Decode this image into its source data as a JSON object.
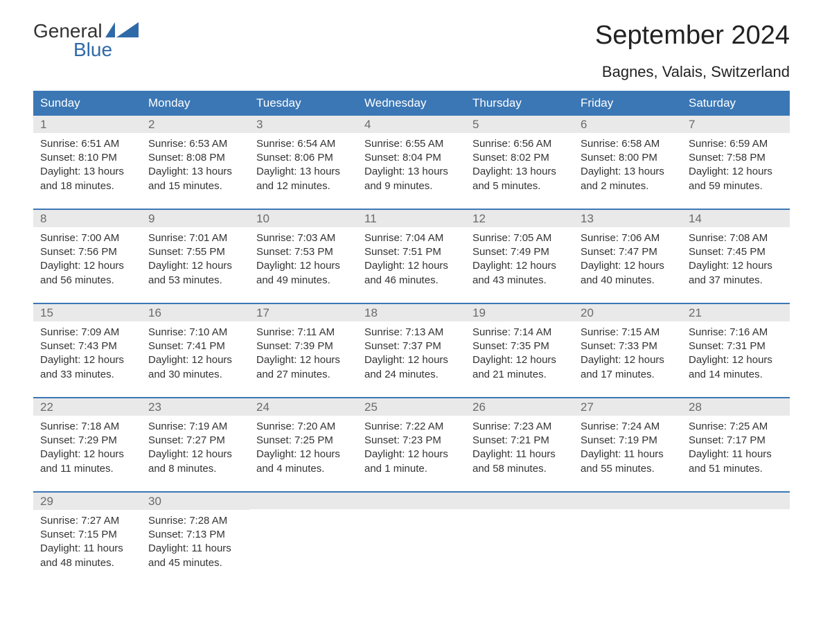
{
  "logo": {
    "word1": "General",
    "word2": "Blue"
  },
  "title": "September 2024",
  "location": "Bagnes, Valais, Switzerland",
  "colors": {
    "header_bg": "#3b77b5",
    "header_text": "#ffffff",
    "daynum_bg": "#e9e9e9",
    "daynum_text": "#6a6a6a",
    "body_text": "#333333",
    "accent": "#2f6aa8",
    "page_bg": "#ffffff",
    "week_border": "#3b77b5"
  },
  "typography": {
    "title_fontsize": 38,
    "subtitle_fontsize": 22,
    "weekday_fontsize": 17,
    "daynum_fontsize": 17,
    "body_fontsize": 15,
    "logo_fontsize": 28
  },
  "weekdays": [
    "Sunday",
    "Monday",
    "Tuesday",
    "Wednesday",
    "Thursday",
    "Friday",
    "Saturday"
  ],
  "weeks": [
    [
      {
        "n": "1",
        "sunrise": "Sunrise: 6:51 AM",
        "sunset": "Sunset: 8:10 PM",
        "day1": "Daylight: 13 hours",
        "day2": "and 18 minutes."
      },
      {
        "n": "2",
        "sunrise": "Sunrise: 6:53 AM",
        "sunset": "Sunset: 8:08 PM",
        "day1": "Daylight: 13 hours",
        "day2": "and 15 minutes."
      },
      {
        "n": "3",
        "sunrise": "Sunrise: 6:54 AM",
        "sunset": "Sunset: 8:06 PM",
        "day1": "Daylight: 13 hours",
        "day2": "and 12 minutes."
      },
      {
        "n": "4",
        "sunrise": "Sunrise: 6:55 AM",
        "sunset": "Sunset: 8:04 PM",
        "day1": "Daylight: 13 hours",
        "day2": "and 9 minutes."
      },
      {
        "n": "5",
        "sunrise": "Sunrise: 6:56 AM",
        "sunset": "Sunset: 8:02 PM",
        "day1": "Daylight: 13 hours",
        "day2": "and 5 minutes."
      },
      {
        "n": "6",
        "sunrise": "Sunrise: 6:58 AM",
        "sunset": "Sunset: 8:00 PM",
        "day1": "Daylight: 13 hours",
        "day2": "and 2 minutes."
      },
      {
        "n": "7",
        "sunrise": "Sunrise: 6:59 AM",
        "sunset": "Sunset: 7:58 PM",
        "day1": "Daylight: 12 hours",
        "day2": "and 59 minutes."
      }
    ],
    [
      {
        "n": "8",
        "sunrise": "Sunrise: 7:00 AM",
        "sunset": "Sunset: 7:56 PM",
        "day1": "Daylight: 12 hours",
        "day2": "and 56 minutes."
      },
      {
        "n": "9",
        "sunrise": "Sunrise: 7:01 AM",
        "sunset": "Sunset: 7:55 PM",
        "day1": "Daylight: 12 hours",
        "day2": "and 53 minutes."
      },
      {
        "n": "10",
        "sunrise": "Sunrise: 7:03 AM",
        "sunset": "Sunset: 7:53 PM",
        "day1": "Daylight: 12 hours",
        "day2": "and 49 minutes."
      },
      {
        "n": "11",
        "sunrise": "Sunrise: 7:04 AM",
        "sunset": "Sunset: 7:51 PM",
        "day1": "Daylight: 12 hours",
        "day2": "and 46 minutes."
      },
      {
        "n": "12",
        "sunrise": "Sunrise: 7:05 AM",
        "sunset": "Sunset: 7:49 PM",
        "day1": "Daylight: 12 hours",
        "day2": "and 43 minutes."
      },
      {
        "n": "13",
        "sunrise": "Sunrise: 7:06 AM",
        "sunset": "Sunset: 7:47 PM",
        "day1": "Daylight: 12 hours",
        "day2": "and 40 minutes."
      },
      {
        "n": "14",
        "sunrise": "Sunrise: 7:08 AM",
        "sunset": "Sunset: 7:45 PM",
        "day1": "Daylight: 12 hours",
        "day2": "and 37 minutes."
      }
    ],
    [
      {
        "n": "15",
        "sunrise": "Sunrise: 7:09 AM",
        "sunset": "Sunset: 7:43 PM",
        "day1": "Daylight: 12 hours",
        "day2": "and 33 minutes."
      },
      {
        "n": "16",
        "sunrise": "Sunrise: 7:10 AM",
        "sunset": "Sunset: 7:41 PM",
        "day1": "Daylight: 12 hours",
        "day2": "and 30 minutes."
      },
      {
        "n": "17",
        "sunrise": "Sunrise: 7:11 AM",
        "sunset": "Sunset: 7:39 PM",
        "day1": "Daylight: 12 hours",
        "day2": "and 27 minutes."
      },
      {
        "n": "18",
        "sunrise": "Sunrise: 7:13 AM",
        "sunset": "Sunset: 7:37 PM",
        "day1": "Daylight: 12 hours",
        "day2": "and 24 minutes."
      },
      {
        "n": "19",
        "sunrise": "Sunrise: 7:14 AM",
        "sunset": "Sunset: 7:35 PM",
        "day1": "Daylight: 12 hours",
        "day2": "and 21 minutes."
      },
      {
        "n": "20",
        "sunrise": "Sunrise: 7:15 AM",
        "sunset": "Sunset: 7:33 PM",
        "day1": "Daylight: 12 hours",
        "day2": "and 17 minutes."
      },
      {
        "n": "21",
        "sunrise": "Sunrise: 7:16 AM",
        "sunset": "Sunset: 7:31 PM",
        "day1": "Daylight: 12 hours",
        "day2": "and 14 minutes."
      }
    ],
    [
      {
        "n": "22",
        "sunrise": "Sunrise: 7:18 AM",
        "sunset": "Sunset: 7:29 PM",
        "day1": "Daylight: 12 hours",
        "day2": "and 11 minutes."
      },
      {
        "n": "23",
        "sunrise": "Sunrise: 7:19 AM",
        "sunset": "Sunset: 7:27 PM",
        "day1": "Daylight: 12 hours",
        "day2": "and 8 minutes."
      },
      {
        "n": "24",
        "sunrise": "Sunrise: 7:20 AM",
        "sunset": "Sunset: 7:25 PM",
        "day1": "Daylight: 12 hours",
        "day2": "and 4 minutes."
      },
      {
        "n": "25",
        "sunrise": "Sunrise: 7:22 AM",
        "sunset": "Sunset: 7:23 PM",
        "day1": "Daylight: 12 hours",
        "day2": "and 1 minute."
      },
      {
        "n": "26",
        "sunrise": "Sunrise: 7:23 AM",
        "sunset": "Sunset: 7:21 PM",
        "day1": "Daylight: 11 hours",
        "day2": "and 58 minutes."
      },
      {
        "n": "27",
        "sunrise": "Sunrise: 7:24 AM",
        "sunset": "Sunset: 7:19 PM",
        "day1": "Daylight: 11 hours",
        "day2": "and 55 minutes."
      },
      {
        "n": "28",
        "sunrise": "Sunrise: 7:25 AM",
        "sunset": "Sunset: 7:17 PM",
        "day1": "Daylight: 11 hours",
        "day2": "and 51 minutes."
      }
    ],
    [
      {
        "n": "29",
        "sunrise": "Sunrise: 7:27 AM",
        "sunset": "Sunset: 7:15 PM",
        "day1": "Daylight: 11 hours",
        "day2": "and 48 minutes."
      },
      {
        "n": "30",
        "sunrise": "Sunrise: 7:28 AM",
        "sunset": "Sunset: 7:13 PM",
        "day1": "Daylight: 11 hours",
        "day2": "and 45 minutes."
      },
      {
        "empty": true
      },
      {
        "empty": true
      },
      {
        "empty": true
      },
      {
        "empty": true
      },
      {
        "empty": true
      }
    ]
  ]
}
